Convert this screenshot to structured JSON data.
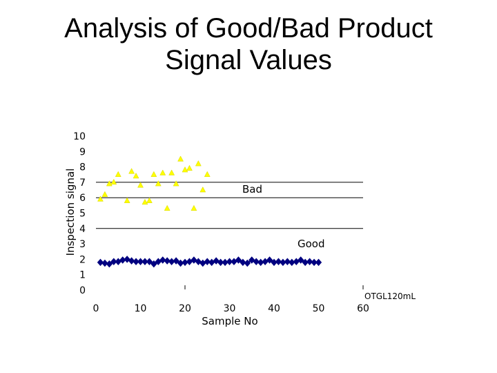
{
  "slide": {
    "title_line1": "Analysis of Good/Bad Product",
    "title_line2": "Signal Values"
  },
  "chart_data": {
    "type": "scatter",
    "title": "",
    "xlabel": "Sample No",
    "ylabel": "Inspection signal",
    "xlim": [
      0,
      60
    ],
    "ylim": [
      0,
      10
    ],
    "x_ticks": [
      "0",
      "10",
      "20",
      "30",
      "40",
      "50",
      "60"
    ],
    "y_ticks": [
      "0",
      "1",
      "2",
      "3",
      "4",
      "5",
      "6",
      "7",
      "8",
      "9",
      "10"
    ],
    "grid": false,
    "legend": "none",
    "reference_lines": [
      7.0,
      6.0,
      4.0
    ],
    "annotations": {
      "bad": "Bad",
      "good": "Good",
      "model": "OTGL120mL"
    },
    "series": [
      {
        "marker": "triangle",
        "color": "#FFFF00",
        "points": [
          [
            1,
            5.9
          ],
          [
            2,
            6.2
          ],
          [
            3,
            6.9
          ],
          [
            4,
            7.0
          ],
          [
            5,
            7.5
          ],
          [
            7,
            5.8
          ],
          [
            8,
            7.7
          ],
          [
            9,
            7.4
          ],
          [
            10,
            6.8
          ],
          [
            11,
            5.7
          ],
          [
            12,
            5.8
          ],
          [
            13,
            7.5
          ],
          [
            14,
            6.9
          ],
          [
            15,
            7.6
          ],
          [
            16,
            5.3
          ],
          [
            17,
            7.6
          ],
          [
            18,
            6.9
          ],
          [
            19,
            8.5
          ],
          [
            20,
            7.8
          ],
          [
            21,
            7.9
          ],
          [
            22,
            5.3
          ],
          [
            23,
            8.2
          ],
          [
            24,
            6.5
          ],
          [
            25,
            7.5
          ]
        ]
      },
      {
        "marker": "diamond",
        "color": "#000080",
        "points": [
          [
            1,
            1.8
          ],
          [
            2,
            1.75
          ],
          [
            3,
            1.7
          ],
          [
            4,
            1.85
          ],
          [
            5,
            1.85
          ],
          [
            6,
            1.95
          ],
          [
            7,
            2.0
          ],
          [
            8,
            1.9
          ],
          [
            9,
            1.85
          ],
          [
            10,
            1.85
          ],
          [
            11,
            1.85
          ],
          [
            12,
            1.85
          ],
          [
            13,
            1.7
          ],
          [
            14,
            1.85
          ],
          [
            15,
            1.95
          ],
          [
            16,
            1.9
          ],
          [
            17,
            1.85
          ],
          [
            18,
            1.9
          ],
          [
            19,
            1.75
          ],
          [
            20,
            1.8
          ],
          [
            21,
            1.85
          ],
          [
            22,
            1.95
          ],
          [
            23,
            1.85
          ],
          [
            24,
            1.75
          ],
          [
            25,
            1.85
          ],
          [
            26,
            1.8
          ],
          [
            27,
            1.9
          ],
          [
            28,
            1.8
          ],
          [
            29,
            1.8
          ],
          [
            30,
            1.85
          ],
          [
            31,
            1.85
          ],
          [
            32,
            1.95
          ],
          [
            33,
            1.8
          ],
          [
            34,
            1.75
          ],
          [
            35,
            1.95
          ],
          [
            36,
            1.85
          ],
          [
            37,
            1.8
          ],
          [
            38,
            1.85
          ],
          [
            39,
            1.95
          ],
          [
            40,
            1.8
          ],
          [
            41,
            1.85
          ],
          [
            42,
            1.8
          ],
          [
            43,
            1.85
          ],
          [
            44,
            1.8
          ],
          [
            45,
            1.85
          ],
          [
            46,
            1.95
          ],
          [
            47,
            1.8
          ],
          [
            48,
            1.85
          ],
          [
            49,
            1.8
          ],
          [
            50,
            1.8
          ]
        ]
      }
    ]
  }
}
